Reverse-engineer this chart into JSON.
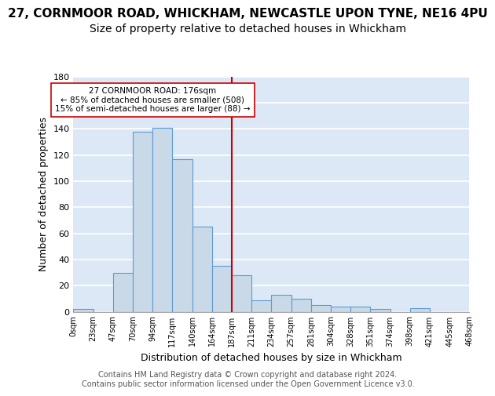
{
  "title": "27, CORNMOOR ROAD, WHICKHAM, NEWCASTLE UPON TYNE, NE16 4PU",
  "subtitle": "Size of property relative to detached houses in Whickham",
  "xlabel": "Distribution of detached houses by size in Whickham",
  "ylabel": "Number of detached properties",
  "bar_values": [
    2,
    0,
    30,
    138,
    141,
    117,
    65,
    35,
    28,
    9,
    13,
    10,
    5,
    4,
    4,
    2,
    0,
    3,
    0,
    0
  ],
  "bin_labels": [
    "0sqm",
    "23sqm",
    "47sqm",
    "70sqm",
    "94sqm",
    "117sqm",
    "140sqm",
    "164sqm",
    "187sqm",
    "211sqm",
    "234sqm",
    "257sqm",
    "281sqm",
    "304sqm",
    "328sqm",
    "351sqm",
    "374sqm",
    "398sqm",
    "421sqm",
    "445sqm",
    "468sqm"
  ],
  "bar_color": "#c9d9e8",
  "bar_edge_color": "#5b9bd5",
  "vline_x": 7.5,
  "vline_color": "#cc0000",
  "annotation_text": "27 CORNMOOR ROAD: 176sqm\n← 85% of detached houses are smaller (508)\n15% of semi-detached houses are larger (88) →",
  "annotation_box_color": "#ffffff",
  "annotation_box_edge": "#cc0000",
  "ylim": [
    0,
    180
  ],
  "yticks": [
    0,
    20,
    40,
    60,
    80,
    100,
    120,
    140,
    160,
    180
  ],
  "background_color": "#dce8f5",
  "grid_color": "#ffffff",
  "footer_text": "Contains HM Land Registry data © Crown copyright and database right 2024.\nContains public sector information licensed under the Open Government Licence v3.0.",
  "title_fontsize": 11,
  "subtitle_fontsize": 10,
  "xlabel_fontsize": 9,
  "ylabel_fontsize": 9,
  "footer_fontsize": 7
}
